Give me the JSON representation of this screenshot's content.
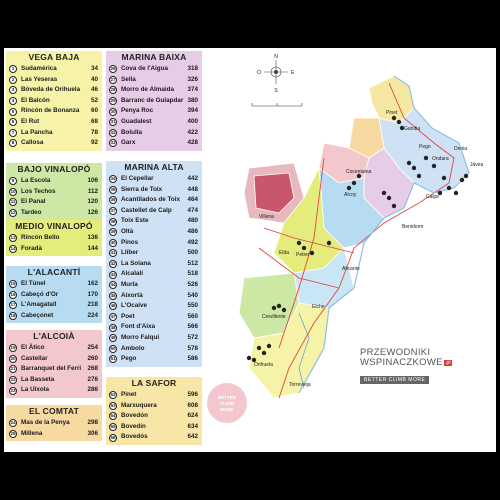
{
  "sections_left": [
    {
      "id": "vega-baja",
      "title": "VEGA BAJA",
      "color": "#f6f3a8",
      "items": [
        {
          "n": "1",
          "name": "Sudamérica",
          "page": "34"
        },
        {
          "n": "2",
          "name": "Las Yeseras",
          "page": "40"
        },
        {
          "n": "3",
          "name": "Bóveda de Orihuela",
          "page": "46"
        },
        {
          "n": "4",
          "name": "El Balcón",
          "page": "52"
        },
        {
          "n": "5",
          "name": "Rincón de Bonanza",
          "page": "60"
        },
        {
          "n": "6",
          "name": "El Rut",
          "page": "68"
        },
        {
          "n": "7",
          "name": "La Pancha",
          "page": "78"
        },
        {
          "n": "8",
          "name": "Callosa",
          "page": "92"
        }
      ]
    },
    {
      "id": "bajo-vinalopo",
      "title": "BAJO VINALOPÓ",
      "color": "#cde7a5",
      "items": [
        {
          "n": "9",
          "name": "La Escola",
          "page": "106"
        },
        {
          "n": "10",
          "name": "Los Techos",
          "page": "112"
        },
        {
          "n": "11",
          "name": "El Panal",
          "page": "120"
        },
        {
          "n": "12",
          "name": "Tardeo",
          "page": "126"
        }
      ]
    },
    {
      "id": "medio-vinalopo",
      "title": "MEDIO VINALOPÓ",
      "color": "#e4ec7b",
      "items": [
        {
          "n": "13",
          "name": "Rincón Bello",
          "page": "136"
        },
        {
          "n": "14",
          "name": "Foradà",
          "page": "144"
        }
      ]
    },
    {
      "id": "alacanti",
      "title": "L'ALACANTÍ",
      "color": "#b7dcf1",
      "items": [
        {
          "n": "15",
          "name": "El Túnel",
          "page": "162"
        },
        {
          "n": "16",
          "name": "Cabeçó d'Or",
          "page": "170"
        },
        {
          "n": "17",
          "name": "L'Amagatall",
          "page": "218"
        },
        {
          "n": "18",
          "name": "Cabeçonet",
          "page": "224"
        }
      ]
    },
    {
      "id": "alcoia",
      "title": "L'ALCOIÀ",
      "color": "#f2c8cc",
      "items": [
        {
          "n": "19",
          "name": "El Àtico",
          "page": "254"
        },
        {
          "n": "20",
          "name": "Castellar",
          "page": "260"
        },
        {
          "n": "21",
          "name": "Barranquet del Ferri",
          "page": "268"
        },
        {
          "n": "22",
          "name": "La Basseta",
          "page": "276"
        },
        {
          "n": "23",
          "name": "La Uixola",
          "page": "286"
        }
      ]
    },
    {
      "id": "comtat",
      "title": "EL COMTAT",
      "color": "#f7d9a2",
      "items": [
        {
          "n": "24",
          "name": "Mas de la Penya",
          "page": "298"
        },
        {
          "n": "25",
          "name": "Millena",
          "page": "306"
        }
      ]
    }
  ],
  "sections_right": [
    {
      "id": "marina-baixa",
      "title": "MARINA BAIXA",
      "color": "#e7cce8",
      "items": [
        {
          "n": "26",
          "name": "Cova de l'Aigua",
          "page": "318"
        },
        {
          "n": "27",
          "name": "Sella",
          "page": "326"
        },
        {
          "n": "28",
          "name": "Morro de Almaida",
          "page": "374"
        },
        {
          "n": "29",
          "name": "Barranc de Gulapdar",
          "page": "380"
        },
        {
          "n": "30",
          "name": "Penya Roc",
          "page": "394"
        },
        {
          "n": "31",
          "name": "Guadalest",
          "page": "400"
        },
        {
          "n": "32",
          "name": "Bolulla",
          "page": "422"
        },
        {
          "n": "33",
          "name": "Garx",
          "page": "428"
        }
      ]
    },
    {
      "id": "marina-alta",
      "title": "MARINA ALTA",
      "color": "#cfe2f5",
      "items": [
        {
          "n": "34",
          "name": "El Cepellar",
          "page": "442"
        },
        {
          "n": "35",
          "name": "Sierra de Toix",
          "page": "448"
        },
        {
          "n": "36",
          "name": "Acantilados de Toix",
          "page": "464"
        },
        {
          "n": "37",
          "name": "Castellet de Calp",
          "page": "474"
        },
        {
          "n": "38",
          "name": "Toix Este",
          "page": "480"
        },
        {
          "n": "39",
          "name": "Oltà",
          "page": "486"
        },
        {
          "n": "40",
          "name": "Pinos",
          "page": "492"
        },
        {
          "n": "41",
          "name": "Llíber",
          "page": "500"
        },
        {
          "n": "42",
          "name": "La Solana",
          "page": "512"
        },
        {
          "n": "43",
          "name": "Alcalalí",
          "page": "518"
        },
        {
          "n": "44",
          "name": "Murla",
          "page": "526"
        },
        {
          "n": "45",
          "name": "Aixortà",
          "page": "540"
        },
        {
          "n": "46",
          "name": "L'Ocaive",
          "page": "550"
        },
        {
          "n": "47",
          "name": "Poet",
          "page": "560"
        },
        {
          "n": "48",
          "name": "Font d'Aixa",
          "page": "566"
        },
        {
          "n": "49",
          "name": "Morro Falquí",
          "page": "572"
        },
        {
          "n": "50",
          "name": "Ambolo",
          "page": "578"
        },
        {
          "n": "51",
          "name": "Pego",
          "page": "586"
        }
      ]
    },
    {
      "id": "safor",
      "title": "LA SAFOR",
      "color": "#f8e6a7",
      "items": [
        {
          "n": "52",
          "name": "Pinet",
          "page": "596"
        },
        {
          "n": "53",
          "name": "Marxuquera",
          "page": "608"
        },
        {
          "n": "54",
          "name": "Bovedón",
          "page": "624"
        },
        {
          "n": "55",
          "name": "Bovedín",
          "page": "634"
        },
        {
          "n": "56",
          "name": "Bovedós",
          "page": "642"
        }
      ]
    }
  ],
  "map": {
    "compass": {
      "n": "N",
      "s": "S",
      "e": "E",
      "w": "O"
    },
    "towns": [
      "Pinet",
      "Gandia",
      "Pego",
      "Ondara",
      "Denia",
      "Jávea",
      "Calpe",
      "Benidorm",
      "Cocentaina",
      "Alcoy",
      "Villena",
      "Elda",
      "Petrer",
      "Alicante",
      "Elche",
      "Crevillente",
      "Orihuela",
      "Torrevieja"
    ]
  },
  "brand": {
    "line1": "PRZEWODNIKI",
    "line2": "WSPINACZKOWE",
    "tld": ".pl",
    "tagline": "BETTER CLIMB MORE"
  },
  "stamp": {
    "line1": "BETTER",
    "line2": "CLIMB",
    "line3": "MORE"
  },
  "colors": {
    "background": "#000000",
    "panel": "#ffffff",
    "roads": "#e0463e",
    "sea_label": "#2d6fa8"
  }
}
